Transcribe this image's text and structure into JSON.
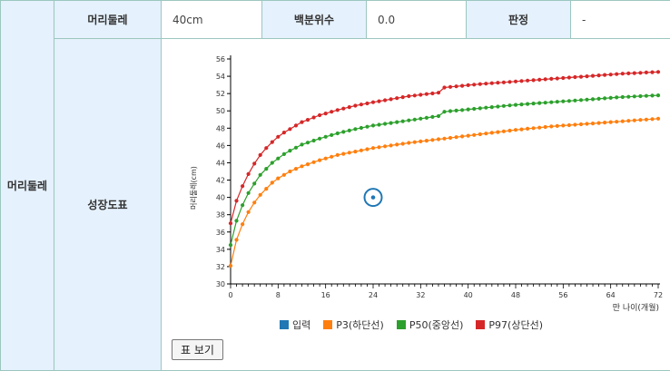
{
  "row_header": "머리둘레",
  "header": {
    "field1_label": "머리둘레",
    "field1_value": "40cm",
    "field2_label": "백분위수",
    "field2_value": "0.0",
    "field3_label": "판정",
    "field3_value": "-"
  },
  "chart_section_label": "성장도표",
  "chart_data": {
    "type": "line",
    "xlabel": "만 나이(개월)",
    "ylabel": "머리둘레(cm)",
    "xlim": [
      0,
      72
    ],
    "ylim": [
      30,
      56
    ],
    "x_ticks": [
      0,
      8,
      16,
      24,
      32,
      40,
      48,
      56,
      64,
      72
    ],
    "y_ticks": [
      30,
      32,
      34,
      36,
      38,
      40,
      42,
      44,
      46,
      48,
      50,
      52,
      54,
      56
    ],
    "series_colors": {
      "input": "#1f77b4",
      "p3": "#ff7f0e",
      "p50": "#2ca02c",
      "p97": "#d62728"
    },
    "input_point": {
      "x": 24,
      "y": 40
    },
    "p3_anchors": [
      [
        0,
        32.1
      ],
      [
        1,
        35.1
      ],
      [
        2,
        36.9
      ],
      [
        3,
        38.3
      ],
      [
        4,
        39.4
      ],
      [
        5,
        40.3
      ],
      [
        6,
        41.0
      ],
      [
        7,
        41.7
      ],
      [
        8,
        42.2
      ],
      [
        9,
        42.6
      ],
      [
        10,
        43.0
      ],
      [
        12,
        43.6
      ],
      [
        15,
        44.3
      ],
      [
        18,
        44.9
      ],
      [
        21,
        45.3
      ],
      [
        24,
        45.7
      ],
      [
        30,
        46.3
      ],
      [
        36,
        46.8
      ],
      [
        42,
        47.3
      ],
      [
        48,
        47.8
      ],
      [
        54,
        48.2
      ],
      [
        60,
        48.5
      ],
      [
        66,
        48.8
      ],
      [
        72,
        49.1
      ]
    ],
    "p50_anchors": [
      [
        0,
        34.5
      ],
      [
        1,
        37.3
      ],
      [
        2,
        39.1
      ],
      [
        3,
        40.5
      ],
      [
        4,
        41.6
      ],
      [
        5,
        42.6
      ],
      [
        6,
        43.3
      ],
      [
        7,
        44.0
      ],
      [
        8,
        44.5
      ],
      [
        9,
        45.0
      ],
      [
        10,
        45.4
      ],
      [
        12,
        46.1
      ],
      [
        15,
        46.8
      ],
      [
        18,
        47.4
      ],
      [
        21,
        47.9
      ],
      [
        24,
        48.3
      ],
      [
        30,
        48.9
      ],
      [
        35,
        49.4
      ],
      [
        36,
        49.9
      ],
      [
        42,
        50.3
      ],
      [
        48,
        50.7
      ],
      [
        54,
        51.0
      ],
      [
        60,
        51.3
      ],
      [
        66,
        51.6
      ],
      [
        72,
        51.8
      ]
    ],
    "p97_anchors": [
      [
        0,
        37.0
      ],
      [
        1,
        39.6
      ],
      [
        2,
        41.3
      ],
      [
        3,
        42.7
      ],
      [
        4,
        43.9
      ],
      [
        5,
        44.9
      ],
      [
        6,
        45.7
      ],
      [
        7,
        46.4
      ],
      [
        8,
        47.0
      ],
      [
        9,
        47.5
      ],
      [
        10,
        47.9
      ],
      [
        12,
        48.7
      ],
      [
        15,
        49.5
      ],
      [
        18,
        50.1
      ],
      [
        21,
        50.6
      ],
      [
        24,
        51.0
      ],
      [
        30,
        51.7
      ],
      [
        35,
        52.1
      ],
      [
        36,
        52.7
      ],
      [
        42,
        53.1
      ],
      [
        48,
        53.4
      ],
      [
        54,
        53.7
      ],
      [
        60,
        54.0
      ],
      [
        66,
        54.3
      ],
      [
        72,
        54.5
      ]
    ]
  },
  "legend": {
    "input": "입력",
    "p3": "P3(하단선)",
    "p50": "P50(중앙선)",
    "p97": "P97(상단선)"
  },
  "view_table_button": "표 보기"
}
